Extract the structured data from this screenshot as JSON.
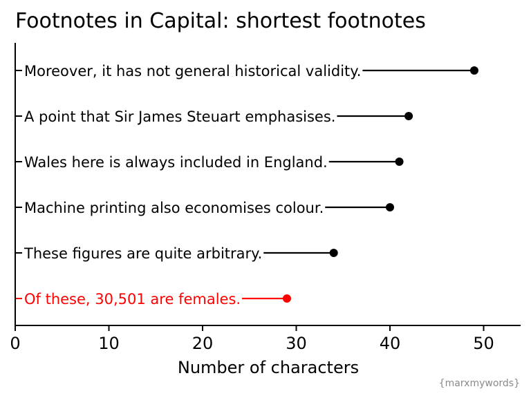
{
  "chart_data": {
    "type": "lollipop",
    "title": "Footnotes in Capital: shortest footnotes",
    "xlabel": "Number of characters",
    "ylabel": "",
    "xlim": [
      0,
      54
    ],
    "xticks": [
      0,
      10,
      20,
      30,
      40,
      50
    ],
    "grid": false,
    "categories": [
      "Moreover, it has not general historical validity.",
      "A point that Sir James Steuart emphasises.",
      "Wales here is always included in England.",
      "Machine printing also economises colour.",
      "These figures are quite arbitrary.",
      "Of these, 30,501 are females."
    ],
    "values": [
      49,
      42,
      41,
      40,
      34,
      29
    ],
    "highlight_index": 5,
    "colors": {
      "default": "#000000",
      "highlight": "#ff0000"
    }
  },
  "credit": "{marxmywords}"
}
